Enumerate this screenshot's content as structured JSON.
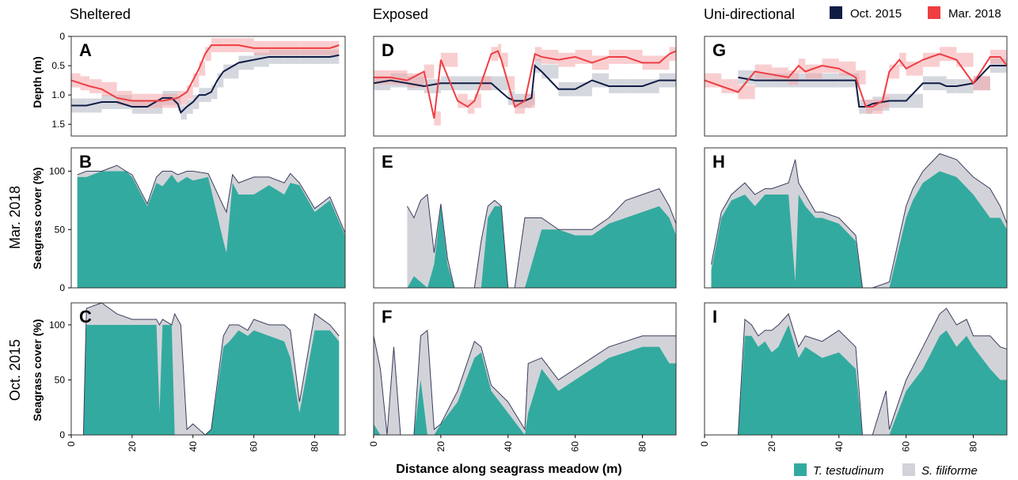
{
  "columns": [
    "Sheltered",
    "Exposed",
    "Uni-directional"
  ],
  "rows": [
    "Mar. 2018",
    "Oct. 2015"
  ],
  "depth_ylabel": "Depth (m)",
  "cover_ylabel": "Seagrass cover (%)",
  "xlabel": "Distance along seagrass meadow (m)",
  "panel_letters": [
    "A",
    "B",
    "C",
    "D",
    "E",
    "F",
    "G",
    "H",
    "I"
  ],
  "legend_top": [
    {
      "name": "Oct. 2015",
      "color": "#0f1d45"
    },
    {
      "name": "Mar. 2018",
      "color": "#ee3e42"
    }
  ],
  "legend_bottom": [
    {
      "name": "T. testudinum",
      "color": "#33aa9f"
    },
    {
      "name": "S. filiforme",
      "color": "#d2d3d9"
    }
  ],
  "chart_data": [
    {
      "panel": "A",
      "type": "line",
      "xlim": [
        0,
        90
      ],
      "ylim": [
        1.7,
        0
      ],
      "yticks": [
        0,
        0.5,
        1.0,
        1.5
      ],
      "ytick_labels": [
        "0",
        "0.5",
        "1.0",
        "1.5"
      ],
      "series": [
        {
          "name": "Oct. 2015",
          "x": [
            0,
            5,
            10,
            15,
            20,
            25,
            30,
            33,
            35,
            36,
            38,
            40,
            42,
            44,
            46,
            48,
            50,
            55,
            60,
            65,
            70,
            75,
            80,
            85,
            88
          ],
          "y": [
            1.18,
            1.18,
            1.12,
            1.12,
            1.2,
            1.2,
            1.05,
            1.05,
            1.15,
            1.3,
            1.2,
            1.12,
            1.0,
            1.0,
            0.95,
            0.75,
            0.6,
            0.45,
            0.4,
            0.35,
            0.35,
            0.35,
            0.35,
            0.35,
            0.32
          ]
        },
        {
          "name": "Mar. 2018",
          "x": [
            0,
            3,
            6,
            10,
            15,
            20,
            25,
            30,
            35,
            38,
            40,
            42,
            44,
            46,
            50,
            55,
            60,
            65,
            70,
            75,
            80,
            85,
            88
          ],
          "y": [
            0.75,
            0.8,
            0.85,
            0.9,
            1.05,
            1.1,
            1.1,
            1.1,
            1.05,
            0.95,
            0.75,
            0.55,
            0.3,
            0.15,
            0.15,
            0.15,
            0.2,
            0.2,
            0.2,
            0.2,
            0.2,
            0.2,
            0.15
          ]
        }
      ]
    },
    {
      "panel": "D",
      "type": "line",
      "xlim": [
        0,
        90
      ],
      "ylim": [
        1.7,
        0
      ],
      "yticks": [],
      "series": [
        {
          "name": "Oct. 2015",
          "x": [
            0,
            5,
            10,
            15,
            20,
            25,
            30,
            35,
            40,
            42,
            45,
            47,
            48,
            50,
            55,
            60,
            65,
            70,
            75,
            80,
            85,
            90
          ],
          "y": [
            0.8,
            0.75,
            0.8,
            0.85,
            0.8,
            0.8,
            0.8,
            0.8,
            1.05,
            1.1,
            1.1,
            1.05,
            0.5,
            0.6,
            0.9,
            0.9,
            0.75,
            0.85,
            0.85,
            0.85,
            0.75,
            0.75
          ]
        },
        {
          "name": "Mar. 2018",
          "x": [
            0,
            5,
            10,
            15,
            18,
            20,
            25,
            28,
            30,
            32,
            35,
            37,
            38,
            40,
            42,
            45,
            48,
            50,
            55,
            60,
            65,
            70,
            75,
            80,
            85,
            88,
            90
          ],
          "y": [
            0.7,
            0.7,
            0.75,
            0.6,
            1.4,
            0.4,
            1.1,
            1.2,
            1.1,
            0.8,
            0.3,
            0.25,
            0.4,
            0.8,
            1.2,
            1.1,
            0.3,
            0.35,
            0.4,
            0.35,
            0.45,
            0.35,
            0.35,
            0.45,
            0.45,
            0.3,
            0.25
          ]
        }
      ]
    },
    {
      "panel": "G",
      "type": "line",
      "xlim": [
        0,
        90
      ],
      "ylim": [
        1.7,
        0
      ],
      "yticks": [],
      "series": [
        {
          "name": "Oct. 2015",
          "x": [
            10,
            15,
            20,
            25,
            30,
            35,
            40,
            45,
            46,
            48,
            50,
            55,
            60,
            65,
            70,
            72,
            75,
            80,
            85,
            88,
            90
          ],
          "y": [
            0.7,
            0.75,
            0.75,
            0.75,
            0.75,
            0.75,
            0.75,
            0.75,
            1.2,
            1.2,
            1.15,
            1.1,
            1.1,
            0.8,
            0.8,
            0.85,
            0.85,
            0.8,
            0.5,
            0.5,
            0.5
          ]
        },
        {
          "name": "Mar. 2018",
          "x": [
            0,
            5,
            10,
            15,
            20,
            25,
            28,
            30,
            35,
            40,
            45,
            48,
            50,
            53,
            55,
            58,
            60,
            65,
            70,
            75,
            80,
            85,
            88,
            90
          ],
          "y": [
            0.75,
            0.85,
            0.95,
            0.6,
            0.65,
            0.7,
            0.5,
            0.6,
            0.5,
            0.55,
            0.7,
            1.2,
            1.2,
            1.1,
            0.6,
            0.4,
            0.55,
            0.4,
            0.3,
            0.4,
            0.8,
            0.35,
            0.35,
            0.5
          ]
        }
      ]
    },
    {
      "panel": "B",
      "type": "area",
      "xlim": [
        0,
        90
      ],
      "ylim": [
        0,
        120
      ],
      "yticks": [
        0,
        50,
        100
      ],
      "x": [
        2,
        5,
        10,
        15,
        18,
        20,
        25,
        28,
        30,
        33,
        35,
        38,
        40,
        45,
        50,
        51,
        53,
        55,
        60,
        65,
        70,
        72,
        75,
        80,
        85,
        90
      ],
      "series": [
        {
          "name": "T. testudinum",
          "values": [
            95,
            95,
            100,
            100,
            100,
            95,
            70,
            90,
            87,
            97,
            90,
            95,
            92,
            95,
            40,
            30,
            90,
            80,
            80,
            88,
            80,
            90,
            88,
            65,
            75,
            45
          ]
        },
        {
          "name": "S. filiforme",
          "values": [
            97,
            100,
            100,
            105,
            100,
            97,
            72,
            95,
            100,
            100,
            97,
            100,
            100,
            98,
            70,
            65,
            97,
            90,
            95,
            95,
            90,
            98,
            90,
            68,
            78,
            47
          ]
        }
      ]
    },
    {
      "panel": "E",
      "type": "area",
      "xlim": [
        0,
        90
      ],
      "ylim": [
        0,
        120
      ],
      "yticks": [],
      "x": [
        10,
        12,
        14,
        16,
        18,
        20,
        22,
        24,
        30,
        32,
        34,
        36,
        38,
        40,
        42,
        45,
        50,
        55,
        60,
        65,
        70,
        75,
        80,
        85,
        88,
        90
      ],
      "series": [
        {
          "name": "T. testudinum",
          "values": [
            0,
            10,
            5,
            0,
            20,
            70,
            20,
            0,
            0,
            0,
            60,
            70,
            70,
            0,
            0,
            0,
            50,
            50,
            45,
            45,
            55,
            60,
            65,
            70,
            60,
            45
          ]
        },
        {
          "name": "S. filiforme",
          "values": [
            70,
            60,
            75,
            80,
            30,
            72,
            25,
            0,
            0,
            40,
            70,
            75,
            70,
            0,
            0,
            60,
            60,
            50,
            50,
            50,
            60,
            75,
            80,
            85,
            70,
            55
          ]
        }
      ]
    },
    {
      "panel": "H",
      "type": "area",
      "xlim": [
        0,
        90
      ],
      "ylim": [
        0,
        120
      ],
      "yticks": [],
      "x": [
        2,
        5,
        8,
        12,
        15,
        18,
        20,
        25,
        27,
        28,
        30,
        33,
        35,
        40,
        45,
        47,
        48,
        50,
        55,
        60,
        62,
        65,
        70,
        75,
        80,
        85,
        88,
        90
      ],
      "series": [
        {
          "name": "T. testudinum",
          "values": [
            15,
            60,
            75,
            80,
            70,
            80,
            80,
            80,
            5,
            80,
            70,
            60,
            60,
            55,
            40,
            0,
            0,
            0,
            0,
            60,
            75,
            90,
            100,
            95,
            80,
            60,
            60,
            50
          ]
        },
        {
          "name": "S. filiforme",
          "values": [
            20,
            65,
            80,
            90,
            80,
            85,
            85,
            90,
            110,
            90,
            80,
            65,
            65,
            60,
            45,
            0,
            0,
            0,
            5,
            70,
            85,
            100,
            115,
            110,
            95,
            85,
            70,
            55
          ]
        }
      ]
    },
    {
      "panel": "C",
      "type": "area",
      "xlim": [
        0,
        90
      ],
      "ylim": [
        0,
        120
      ],
      "yticks": [
        0,
        50,
        100
      ],
      "x": [
        4,
        5,
        10,
        15,
        20,
        25,
        28,
        29,
        30,
        33,
        34,
        36,
        38,
        40,
        44,
        46,
        50,
        52,
        55,
        58,
        60,
        65,
        70,
        72,
        75,
        80,
        85,
        88
      ],
      "series": [
        {
          "name": "T. testudinum",
          "values": [
            0,
            100,
            100,
            100,
            100,
            100,
            100,
            20,
            100,
            100,
            0,
            0,
            0,
            0,
            0,
            5,
            80,
            85,
            95,
            90,
            95,
            90,
            85,
            70,
            20,
            95,
            95,
            85
          ]
        },
        {
          "name": "S. filiforme",
          "values": [
            0,
            115,
            120,
            110,
            105,
            105,
            105,
            100,
            105,
            100,
            110,
            100,
            5,
            10,
            0,
            5,
            90,
            100,
            100,
            95,
            105,
            100,
            100,
            95,
            30,
            110,
            100,
            90
          ]
        }
      ]
    },
    {
      "panel": "F",
      "type": "area",
      "xlim": [
        0,
        90
      ],
      "ylim": [
        0,
        120
      ],
      "yticks": [],
      "x": [
        0,
        2,
        4,
        6,
        8,
        10,
        12,
        14,
        16,
        18,
        20,
        25,
        30,
        32,
        35,
        40,
        45,
        46,
        50,
        55,
        60,
        65,
        70,
        75,
        80,
        85,
        88,
        90
      ],
      "series": [
        {
          "name": "T. testudinum",
          "values": [
            10,
            0,
            0,
            0,
            0,
            0,
            0,
            50,
            0,
            0,
            10,
            30,
            70,
            75,
            40,
            20,
            0,
            20,
            60,
            40,
            50,
            60,
            70,
            75,
            80,
            80,
            65,
            65
          ]
        },
        {
          "name": "S. filiforme",
          "values": [
            90,
            60,
            0,
            80,
            0,
            0,
            0,
            90,
            95,
            5,
            10,
            40,
            85,
            80,
            45,
            30,
            5,
            65,
            70,
            50,
            60,
            70,
            80,
            85,
            90,
            90,
            90,
            90
          ]
        }
      ]
    },
    {
      "panel": "I",
      "type": "area",
      "xlim": [
        0,
        90
      ],
      "ylim": [
        0,
        120
      ],
      "yticks": [],
      "x": [
        10,
        12,
        14,
        16,
        18,
        20,
        22,
        25,
        28,
        30,
        35,
        40,
        45,
        47,
        50,
        52,
        54,
        55,
        60,
        65,
        70,
        72,
        75,
        78,
        80,
        85,
        88,
        90
      ],
      "series": [
        {
          "name": "T. testudinum",
          "values": [
            0,
            90,
            90,
            80,
            85,
            75,
            80,
            100,
            70,
            80,
            70,
            75,
            60,
            0,
            0,
            0,
            0,
            0,
            40,
            60,
            90,
            95,
            80,
            90,
            80,
            60,
            50,
            50
          ]
        },
        {
          "name": "S. filiforme",
          "values": [
            0,
            105,
            100,
            90,
            95,
            95,
            100,
            110,
            80,
            90,
            85,
            95,
            80,
            0,
            0,
            20,
            40,
            5,
            50,
            80,
            110,
            115,
            100,
            105,
            90,
            90,
            80,
            78
          ]
        }
      ]
    }
  ]
}
